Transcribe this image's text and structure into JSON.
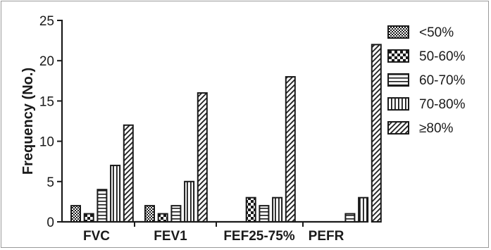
{
  "chart_data": {
    "type": "bar",
    "title": "",
    "xlabel": "",
    "ylabel": "Frequency (No.)",
    "ylim": [
      0,
      25
    ],
    "yticks": [
      "0",
      "5",
      "10",
      "15",
      "20",
      "25"
    ],
    "categories": [
      "FVC",
      "FEV1",
      "FEF25-75%",
      "PEFR"
    ],
    "series": [
      {
        "name": "<50%",
        "pattern": "checker",
        "values": [
          2,
          2,
          0,
          0
        ]
      },
      {
        "name": "50-60%",
        "pattern": "bigchecker",
        "values": [
          1,
          1,
          3,
          0
        ]
      },
      {
        "name": "60-70%",
        "pattern": "hlines",
        "values": [
          4,
          2,
          2,
          1
        ]
      },
      {
        "name": "70-80%",
        "pattern": "vlines",
        "values": [
          7,
          5,
          3,
          3
        ]
      },
      {
        "name": "≥80%",
        "pattern": "diagonal",
        "values": [
          12,
          16,
          18,
          22
        ]
      }
    ],
    "grid": false,
    "legend_position": "right",
    "colors": {
      "stroke": "#1a1a1a",
      "fill": "#ffffff"
    }
  }
}
